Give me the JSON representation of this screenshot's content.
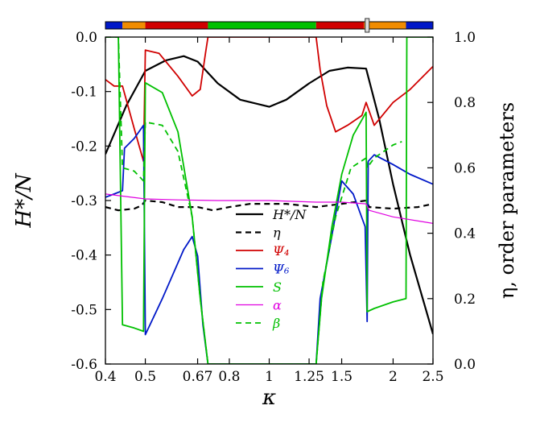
{
  "chart_data": {
    "type": "line",
    "xlabel": "κ",
    "ylabel_left": "H*/N",
    "ylabel_right": "η, order parameters",
    "x_scale": "log",
    "xlim": [
      0.4,
      2.5
    ],
    "ylim_left": [
      -0.6,
      0.0
    ],
    "ylim_right": [
      0.0,
      1.0
    ],
    "x_ticks": [
      0.4,
      0.5,
      0.67,
      0.8,
      1,
      1.25,
      1.5,
      2,
      2.5
    ],
    "x_tick_labels": [
      "0.4",
      "0.5",
      "0.67",
      "0.8",
      "1",
      "1.25",
      "1.5",
      "2",
      "2.5"
    ],
    "y_ticks_left": [
      0.0,
      -0.1,
      -0.2,
      -0.3,
      -0.4,
      -0.5,
      -0.6
    ],
    "y_tick_labels_left": [
      "0.0",
      "-0.1",
      "-0.2",
      "-0.3",
      "-0.4",
      "-0.5",
      "-0.6"
    ],
    "y_ticks_right": [
      1.0,
      0.8,
      0.6,
      0.4,
      0.2,
      0.0
    ],
    "y_tick_labels_right": [
      "1.0",
      "0.8",
      "0.6",
      "0.4",
      "0.2",
      "0.0"
    ],
    "grid": false,
    "legend_position": "center",
    "phase_bar": [
      {
        "from": 0.4,
        "to": 0.44,
        "color": "#0018c8"
      },
      {
        "from": 0.44,
        "to": 0.5,
        "color": "#f08c00"
      },
      {
        "from": 0.5,
        "to": 0.71,
        "color": "#d00000"
      },
      {
        "from": 0.71,
        "to": 1.3,
        "color": "#00c000"
      },
      {
        "from": 1.3,
        "to": 1.7,
        "color": "#d00000"
      },
      {
        "from": 1.7,
        "to": 2.15,
        "color": "#f08c00"
      },
      {
        "from": 2.15,
        "to": 2.5,
        "color": "#0018c8"
      }
    ],
    "phase_marker": 1.73,
    "series": [
      {
        "name": "H*/N",
        "axis": "left",
        "color": "#000000",
        "width": 2.2,
        "dash": "",
        "points": [
          [
            0.4,
            -0.215
          ],
          [
            0.45,
            -0.125
          ],
          [
            0.5,
            -0.062
          ],
          [
            0.56,
            -0.043
          ],
          [
            0.62,
            -0.035
          ],
          [
            0.67,
            -0.045
          ],
          [
            0.75,
            -0.085
          ],
          [
            0.85,
            -0.115
          ],
          [
            1.0,
            -0.128
          ],
          [
            1.1,
            -0.115
          ],
          [
            1.25,
            -0.085
          ],
          [
            1.4,
            -0.062
          ],
          [
            1.55,
            -0.056
          ],
          [
            1.72,
            -0.058
          ],
          [
            1.85,
            -0.15
          ],
          [
            2.0,
            -0.27
          ],
          [
            2.2,
            -0.4
          ],
          [
            2.5,
            -0.545
          ]
        ]
      },
      {
        "name": "η",
        "axis": "right",
        "color": "#000000",
        "width": 2.2,
        "dash": "7,5",
        "points": [
          [
            0.4,
            0.48
          ],
          [
            0.43,
            0.47
          ],
          [
            0.47,
            0.475
          ],
          [
            0.49,
            0.485
          ],
          [
            0.5,
            0.5
          ],
          [
            0.55,
            0.495
          ],
          [
            0.6,
            0.48
          ],
          [
            0.67,
            0.48
          ],
          [
            0.73,
            0.47
          ],
          [
            0.8,
            0.48
          ],
          [
            0.9,
            0.49
          ],
          [
            1.0,
            0.49
          ],
          [
            1.1,
            0.49
          ],
          [
            1.3,
            0.48
          ],
          [
            1.5,
            0.49
          ],
          [
            1.72,
            0.5
          ],
          [
            1.75,
            0.48
          ],
          [
            2.0,
            0.475
          ],
          [
            2.3,
            0.48
          ],
          [
            2.5,
            0.49
          ]
        ]
      },
      {
        "name": "Ψ₄",
        "axis": "right",
        "color": "#d00000",
        "width": 1.8,
        "dash": "",
        "points": [
          [
            0.4,
            0.87
          ],
          [
            0.42,
            0.85
          ],
          [
            0.44,
            0.85
          ],
          [
            0.47,
            0.72
          ],
          [
            0.495,
            0.62
          ],
          [
            0.5,
            0.96
          ],
          [
            0.54,
            0.95
          ],
          [
            0.6,
            0.88
          ],
          [
            0.65,
            0.82
          ],
          [
            0.68,
            0.84
          ],
          [
            0.7,
            0.95
          ],
          [
            0.71,
            1.0
          ],
          [
            1.3,
            1.0
          ],
          [
            1.33,
            0.9
          ],
          [
            1.38,
            0.79
          ],
          [
            1.45,
            0.71
          ],
          [
            1.55,
            0.73
          ],
          [
            1.68,
            0.76
          ],
          [
            1.72,
            0.8
          ],
          [
            1.8,
            0.73
          ],
          [
            2.0,
            0.8
          ],
          [
            2.2,
            0.84
          ],
          [
            2.5,
            0.91
          ]
        ]
      },
      {
        "name": "Ψ₆",
        "axis": "right",
        "color": "#0018c8",
        "width": 1.8,
        "dash": "",
        "points": [
          [
            0.4,
            0.51
          ],
          [
            0.42,
            0.52
          ],
          [
            0.44,
            0.53
          ],
          [
            0.445,
            0.66
          ],
          [
            0.47,
            0.69
          ],
          [
            0.495,
            0.73
          ],
          [
            0.5,
            0.09
          ],
          [
            0.55,
            0.2
          ],
          [
            0.62,
            0.35
          ],
          [
            0.65,
            0.39
          ],
          [
            0.67,
            0.33
          ],
          [
            0.69,
            0.12
          ],
          [
            0.71,
            0.0
          ],
          [
            1.3,
            0.0
          ],
          [
            1.33,
            0.2
          ],
          [
            1.4,
            0.35
          ],
          [
            1.5,
            0.56
          ],
          [
            1.6,
            0.52
          ],
          [
            1.71,
            0.42
          ],
          [
            1.73,
            0.13
          ],
          [
            1.74,
            0.62
          ],
          [
            1.8,
            0.64
          ],
          [
            2.0,
            0.61
          ],
          [
            2.2,
            0.58
          ],
          [
            2.5,
            0.55
          ]
        ]
      },
      {
        "name": "S",
        "axis": "right",
        "color": "#00c000",
        "width": 1.8,
        "dash": "",
        "points": [
          [
            0.4,
            1.0
          ],
          [
            0.43,
            1.0
          ],
          [
            0.44,
            0.12
          ],
          [
            0.47,
            0.11
          ],
          [
            0.495,
            0.1
          ],
          [
            0.5,
            0.86
          ],
          [
            0.55,
            0.83
          ],
          [
            0.6,
            0.71
          ],
          [
            0.65,
            0.45
          ],
          [
            0.68,
            0.2
          ],
          [
            0.71,
            0.0
          ],
          [
            1.3,
            0.0
          ],
          [
            1.34,
            0.2
          ],
          [
            1.42,
            0.42
          ],
          [
            1.5,
            0.58
          ],
          [
            1.6,
            0.7
          ],
          [
            1.72,
            0.77
          ],
          [
            1.73,
            0.16
          ],
          [
            1.8,
            0.17
          ],
          [
            2.0,
            0.19
          ],
          [
            2.15,
            0.2
          ],
          [
            2.16,
            1.0
          ],
          [
            2.5,
            1.0
          ]
        ]
      },
      {
        "name": "α",
        "axis": "right",
        "color": "#e000e0",
        "width": 1.2,
        "dash": "",
        "points": [
          [
            0.4,
            0.52
          ],
          [
            0.5,
            0.505
          ],
          [
            0.6,
            0.502
          ],
          [
            0.75,
            0.5
          ],
          [
            1.0,
            0.5
          ],
          [
            1.3,
            0.495
          ],
          [
            1.5,
            0.495
          ],
          [
            1.72,
            0.49
          ],
          [
            1.75,
            0.47
          ],
          [
            2.0,
            0.45
          ],
          [
            2.5,
            0.43
          ]
        ]
      },
      {
        "name": "β",
        "axis": "right",
        "color": "#00c000",
        "width": 1.8,
        "dash": "7,5",
        "points": [
          [
            0.4,
            1.0
          ],
          [
            0.43,
            1.0
          ],
          [
            0.44,
            0.6
          ],
          [
            0.47,
            0.59
          ],
          [
            0.495,
            0.56
          ],
          [
            0.5,
            0.74
          ],
          [
            0.55,
            0.73
          ],
          [
            0.6,
            0.65
          ],
          [
            0.65,
            0.45
          ],
          [
            0.68,
            0.2
          ],
          [
            0.71,
            0.0
          ],
          [
            1.3,
            0.0
          ],
          [
            1.35,
            0.25
          ],
          [
            1.45,
            0.45
          ],
          [
            1.58,
            0.6
          ],
          [
            1.72,
            0.63
          ],
          [
            1.73,
            0.6
          ],
          [
            1.8,
            0.63
          ],
          [
            2.0,
            0.67
          ],
          [
            2.1,
            0.68
          ]
        ]
      }
    ]
  }
}
